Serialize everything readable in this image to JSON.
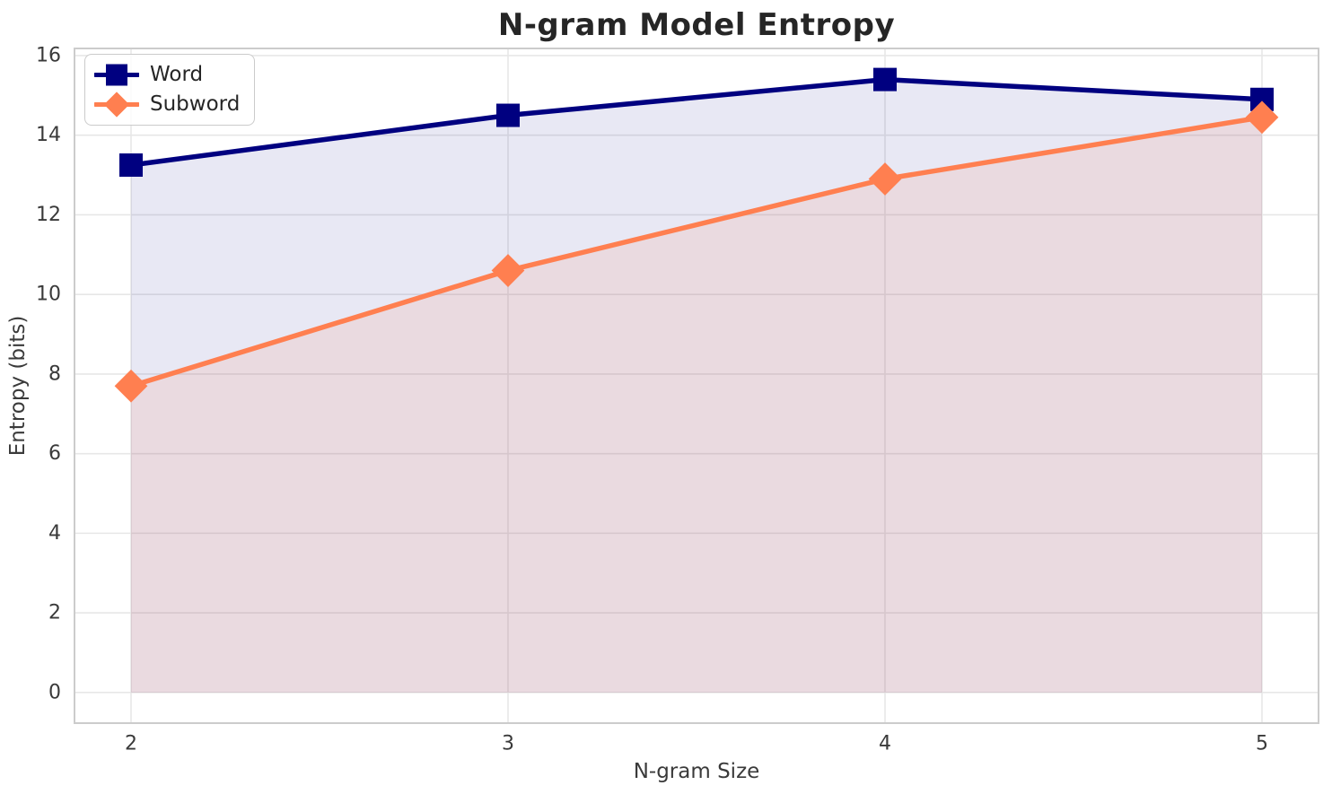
{
  "chart_data": {
    "type": "line",
    "title": "N-gram Model Entropy",
    "xlabel": "N-gram Size",
    "ylabel": "Entropy (bits)",
    "x": [
      2,
      3,
      4,
      5
    ],
    "series": [
      {
        "name": "Word",
        "values": [
          13.25,
          14.5,
          15.4,
          14.9
        ],
        "color": "#000080",
        "marker": "square",
        "fill_alpha": 0.09
      },
      {
        "name": "Subword",
        "values": [
          7.7,
          10.6,
          12.9,
          14.45
        ],
        "color": "#FF7F50",
        "marker": "diamond",
        "fill_alpha": 0.12
      }
    ],
    "fill_to_zero": true,
    "xticks": [
      2,
      3,
      4,
      5
    ],
    "yticks": [
      0,
      2,
      4,
      6,
      8,
      10,
      12,
      14,
      16
    ],
    "xlim": [
      1.85,
      5.15
    ],
    "ylim": [
      -0.77,
      16.18
    ],
    "grid": true,
    "legend_position": "upper-left"
  },
  "colors": {
    "grid": "#e7e7e7",
    "spine": "#cccccc",
    "title_text": "#262626",
    "tick_text": "#3a3a3a",
    "legend_border": "#cbcbcb",
    "legend_text": "#262626",
    "background": "#ffffff"
  }
}
